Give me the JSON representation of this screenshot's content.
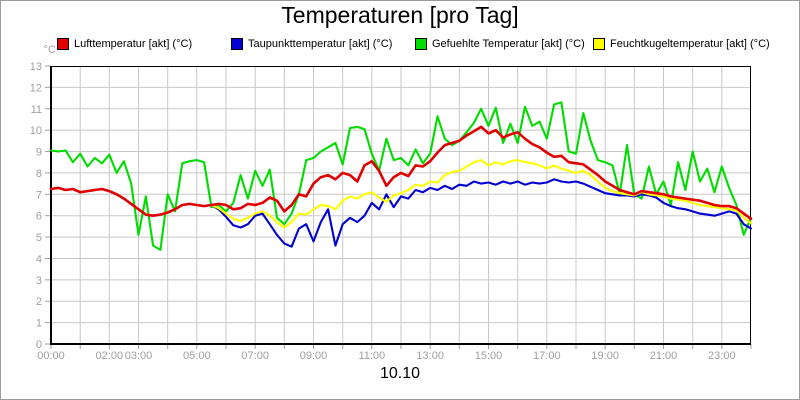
{
  "title": "Temperaturen [pro Tag]",
  "axis_unit_label": "°C",
  "date_label": "10.10",
  "colors": {
    "grid": "#c8c8c8",
    "frame": "#000000",
    "tick": "#a0a0a0",
    "axis_text": "#a0a0a0",
    "background": "#ffffff"
  },
  "chart_data": {
    "type": "line",
    "title": "Temperaturen [pro Tag]",
    "xlabel": "10.10",
    "ylabel": "°C",
    "grid": true,
    "legend_position": "top",
    "x_axis": {
      "start_hour": 0,
      "end_hour": 24,
      "tick_interval_hours": 1,
      "labels": [
        {
          "text": "00:00",
          "hour": 0
        },
        {
          "text": "02:00",
          "hour": 2
        },
        {
          "text": "03:00",
          "hour": 3
        },
        {
          "text": "05:00",
          "hour": 5
        },
        {
          "text": "07:00",
          "hour": 7
        },
        {
          "text": "09:00",
          "hour": 9
        },
        {
          "text": "11:00",
          "hour": 11
        },
        {
          "text": "13:00",
          "hour": 13
        },
        {
          "text": "15:00",
          "hour": 15
        },
        {
          "text": "17:00",
          "hour": 17
        },
        {
          "text": "19:00",
          "hour": 19
        },
        {
          "text": "21:00",
          "hour": 21
        },
        {
          "text": "23:00",
          "hour": 23
        }
      ]
    },
    "y_axis": {
      "min": 0,
      "max": 13,
      "tick_interval": 1,
      "tick_labels": [
        "0",
        "1",
        "2",
        "3",
        "4",
        "5",
        "6",
        "7",
        "8",
        "9",
        "10",
        "11",
        "12",
        "13"
      ]
    },
    "sample_interval_hours": 0.25,
    "draw_order": [
      2,
      1,
      3,
      0
    ],
    "series": [
      {
        "name": "Lufttemperatur [akt] (°C)",
        "color": "#e00000",
        "values": [
          7.25,
          7.3,
          7.2,
          7.25,
          7.1,
          7.15,
          7.2,
          7.25,
          7.15,
          7.0,
          6.8,
          6.55,
          6.3,
          6.05,
          6.0,
          6.05,
          6.15,
          6.3,
          6.5,
          6.55,
          6.5,
          6.45,
          6.5,
          6.55,
          6.5,
          6.3,
          6.35,
          6.55,
          6.5,
          6.6,
          6.85,
          6.7,
          6.2,
          6.5,
          7.0,
          6.9,
          7.5,
          7.8,
          7.9,
          7.7,
          8.0,
          7.9,
          7.6,
          8.35,
          8.55,
          8.1,
          7.4,
          7.8,
          8.0,
          7.85,
          8.35,
          8.3,
          8.55,
          8.95,
          9.3,
          9.4,
          9.5,
          9.75,
          9.95,
          10.15,
          9.85,
          10.0,
          9.65,
          9.8,
          9.9,
          9.6,
          9.35,
          9.2,
          8.95,
          8.75,
          8.8,
          8.5,
          8.45,
          8.4,
          8.15,
          7.9,
          7.6,
          7.4,
          7.2,
          7.1,
          7.0,
          7.15,
          7.1,
          7.05,
          7.0,
          6.9,
          6.85,
          6.8,
          6.75,
          6.7,
          6.6,
          6.5,
          6.45,
          6.45,
          6.35,
          6.1,
          5.85
        ]
      },
      {
        "name": "Taupunkttemperatur [akt] (°C)",
        "color": "#0000d0",
        "values": [
          7.25,
          7.3,
          7.2,
          7.25,
          7.1,
          7.15,
          7.2,
          7.25,
          7.15,
          7.0,
          6.8,
          6.55,
          6.3,
          6.05,
          6.0,
          6.05,
          6.15,
          6.3,
          6.5,
          6.55,
          6.5,
          6.45,
          6.5,
          6.3,
          5.95,
          5.55,
          5.45,
          5.6,
          6.0,
          6.1,
          5.6,
          5.1,
          4.7,
          4.55,
          5.4,
          5.6,
          4.8,
          5.7,
          6.3,
          4.6,
          5.6,
          5.9,
          5.7,
          6.0,
          6.6,
          6.3,
          7.0,
          6.4,
          6.9,
          6.8,
          7.2,
          7.1,
          7.3,
          7.2,
          7.4,
          7.25,
          7.45,
          7.4,
          7.6,
          7.5,
          7.55,
          7.45,
          7.6,
          7.5,
          7.6,
          7.45,
          7.55,
          7.5,
          7.55,
          7.7,
          7.6,
          7.55,
          7.6,
          7.5,
          7.35,
          7.2,
          7.05,
          7.0,
          6.95,
          6.95,
          6.9,
          7.0,
          6.95,
          6.85,
          6.6,
          6.45,
          6.35,
          6.3,
          6.2,
          6.1,
          6.05,
          6.0,
          6.1,
          6.2,
          6.1,
          5.6,
          5.4
        ]
      },
      {
        "name": "Gefuehlte Temperatur [akt] (°C)",
        "color": "#00dc00",
        "values": [
          9.05,
          9.0,
          9.05,
          8.5,
          8.9,
          8.3,
          8.7,
          8.45,
          8.85,
          8.0,
          8.55,
          7.5,
          5.1,
          6.9,
          4.6,
          4.4,
          7.0,
          6.2,
          8.45,
          8.55,
          8.6,
          8.5,
          6.4,
          6.5,
          6.2,
          6.6,
          7.9,
          6.8,
          8.1,
          7.4,
          8.15,
          5.9,
          5.6,
          6.1,
          7.0,
          8.6,
          8.7,
          9.0,
          9.2,
          9.4,
          8.4,
          10.1,
          10.15,
          10.05,
          8.9,
          8.1,
          9.6,
          8.6,
          8.7,
          8.35,
          9.1,
          8.45,
          8.9,
          10.65,
          9.6,
          9.3,
          9.5,
          9.9,
          10.35,
          11.0,
          10.2,
          11.05,
          9.4,
          10.3,
          9.4,
          11.1,
          10.2,
          10.4,
          9.6,
          11.2,
          11.3,
          9.0,
          8.9,
          10.8,
          9.5,
          8.6,
          8.5,
          8.35,
          7.0,
          9.3,
          7.0,
          6.8,
          8.3,
          7.0,
          7.6,
          6.5,
          8.5,
          7.2,
          9.0,
          7.6,
          8.2,
          7.1,
          8.3,
          7.3,
          6.5,
          5.1,
          5.9
        ]
      },
      {
        "name": "Feuchtkugeltemperatur [akt] (°C)",
        "color": "#ffff00",
        "values": [
          7.25,
          7.3,
          7.2,
          7.25,
          7.1,
          7.15,
          7.2,
          7.25,
          7.15,
          7.0,
          6.8,
          6.55,
          6.3,
          6.05,
          6.0,
          6.05,
          6.15,
          6.3,
          6.5,
          6.55,
          6.5,
          6.45,
          6.5,
          6.35,
          6.1,
          5.85,
          5.75,
          5.9,
          6.1,
          6.2,
          6.0,
          5.7,
          5.45,
          5.7,
          6.1,
          6.05,
          6.3,
          6.5,
          6.45,
          6.3,
          6.7,
          6.9,
          6.8,
          7.0,
          7.1,
          6.85,
          6.65,
          6.95,
          7.05,
          7.2,
          7.45,
          7.4,
          7.6,
          7.55,
          7.9,
          8.05,
          8.1,
          8.3,
          8.5,
          8.6,
          8.35,
          8.5,
          8.4,
          8.55,
          8.6,
          8.5,
          8.45,
          8.35,
          8.2,
          8.35,
          8.2,
          8.1,
          8.0,
          8.1,
          7.9,
          7.6,
          7.3,
          7.15,
          7.05,
          7.0,
          6.95,
          7.1,
          7.0,
          6.95,
          6.9,
          6.8,
          6.75,
          6.7,
          6.6,
          6.5,
          6.45,
          6.4,
          6.35,
          6.3,
          6.25,
          5.9,
          5.65
        ]
      }
    ]
  }
}
